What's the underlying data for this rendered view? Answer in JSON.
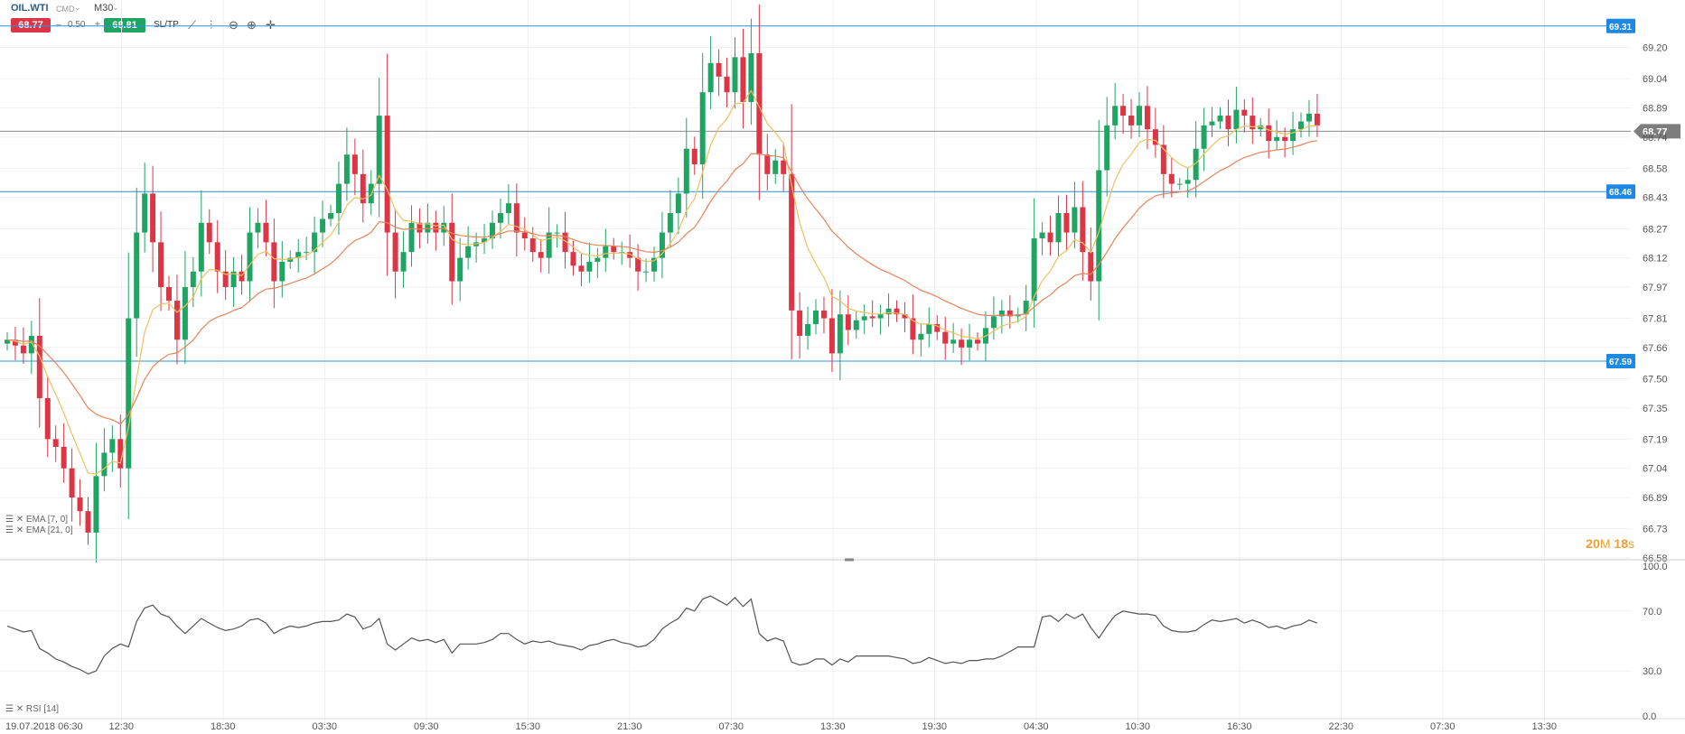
{
  "header": {
    "symbol": "OIL.WTI",
    "symbol_sub": "CMD",
    "timeframe": "M30",
    "sell_price": "68.77",
    "spread_minus": "–",
    "spread": "0.50",
    "spread_plus": "+",
    "buy_price": "68.81",
    "sltp_label": "SL/TP"
  },
  "indicators": {
    "ema_fast": "EMA [7, 0]",
    "ema_slow": "EMA [21, 0]",
    "rsi": "RSI [14]"
  },
  "timer": {
    "minutes": "20",
    "minutes_unit": "M",
    "seconds": "18",
    "seconds_unit": "s"
  },
  "chart_data": {
    "type": "candlestick",
    "ylim": [
      66.58,
      69.36
    ],
    "y_ticks": [
      "69.20",
      "69.04",
      "68.89",
      "68.74",
      "68.58",
      "68.43",
      "68.27",
      "68.12",
      "67.97",
      "67.81",
      "67.66",
      "67.50",
      "67.35",
      "67.19",
      "67.04",
      "66.89",
      "66.73",
      "66.58"
    ],
    "x_ticks": [
      "19.07.2018 06:30",
      "12:30",
      "18:30",
      "03:30",
      "09:30",
      "15:30",
      "21:30",
      "07:30",
      "13:30",
      "19:30",
      "04:30",
      "10:30",
      "16:30",
      "22:30",
      "07:30",
      "13:30"
    ],
    "horizontal_lines": [
      {
        "value": 69.31,
        "label": "69.31",
        "color": "#2f8fd8"
      },
      {
        "value": 68.46,
        "label": "68.46",
        "color": "#2f8fd8"
      },
      {
        "value": 67.59,
        "label": "67.59",
        "color": "#2f8fd8"
      }
    ],
    "current_price": {
      "value": 68.77,
      "label": "68.77",
      "color": "#8a8a8a"
    },
    "colors": {
      "up": "#1fa463",
      "down": "#dc3545",
      "ema_fast": "#f0c060",
      "ema_slow": "#e8845a",
      "rsi": "#555555"
    },
    "close": [
      67.7,
      67.67,
      67.63,
      67.72,
      67.4,
      67.19,
      67.15,
      67.04,
      66.89,
      66.82,
      66.71,
      67.0,
      67.12,
      67.19,
      67.04,
      67.81,
      68.25,
      68.45,
      68.2,
      67.97,
      67.9,
      67.7,
      67.97,
      68.05,
      68.3,
      68.2,
      68.05,
      67.97,
      68.05,
      68.0,
      68.25,
      68.3,
      68.2,
      68.0,
      68.1,
      68.12,
      68.15,
      68.15,
      68.25,
      68.32,
      68.35,
      68.5,
      68.65,
      68.55,
      68.4,
      68.5,
      68.85,
      68.25,
      68.05,
      68.15,
      68.3,
      68.25,
      68.3,
      68.25,
      68.3,
      68.0,
      68.12,
      68.18,
      68.2,
      68.22,
      68.3,
      68.35,
      68.4,
      68.25,
      68.22,
      68.15,
      68.12,
      68.25,
      68.25,
      68.15,
      68.08,
      68.05,
      68.1,
      68.12,
      68.18,
      68.15,
      68.15,
      68.12,
      68.05,
      68.05,
      68.12,
      68.25,
      68.35,
      68.45,
      68.68,
      68.6,
      68.97,
      69.12,
      69.05,
      68.97,
      69.15,
      68.92,
      69.17,
      68.65,
      68.55,
      68.62,
      68.55,
      67.85,
      67.72,
      67.78,
      67.85,
      67.81,
      67.63,
      67.83,
      67.75,
      67.8,
      67.82,
      67.81,
      67.83,
      67.86,
      67.83,
      67.81,
      67.7,
      67.73,
      67.78,
      67.74,
      67.68,
      67.7,
      67.66,
      67.7,
      67.68,
      67.76,
      67.82,
      67.85,
      67.82,
      67.83,
      67.9,
      68.22,
      68.25,
      68.2,
      68.35,
      68.25,
      68.38,
      68.15,
      68.0,
      68.57,
      68.8,
      68.9,
      68.85,
      68.8,
      68.9,
      68.78,
      68.7,
      68.55,
      68.5,
      68.5,
      68.52,
      68.68,
      68.8,
      68.82,
      68.85,
      68.78,
      68.88,
      68.85,
      68.78,
      68.8,
      68.72,
      68.74,
      68.72,
      68.78,
      68.82,
      68.86,
      68.8
    ]
  },
  "rsi_data": {
    "ylim": [
      0,
      100
    ],
    "y_ticks": [
      "100.0",
      "70.0",
      "30.0",
      "0.0"
    ],
    "values": [
      60,
      58,
      56,
      57,
      45,
      42,
      38,
      36,
      33,
      31,
      28,
      30,
      40,
      45,
      48,
      46,
      63,
      72,
      74,
      68,
      66,
      60,
      55,
      60,
      65,
      62,
      59,
      57,
      58,
      60,
      64,
      65,
      62,
      55,
      58,
      60,
      59,
      60,
      62,
      63,
      63,
      64,
      68,
      66,
      58,
      60,
      65,
      48,
      44,
      48,
      52,
      50,
      51,
      49,
      51,
      42,
      48,
      48,
      48,
      49,
      51,
      55,
      55,
      51,
      48,
      50,
      49,
      50,
      48,
      47,
      46,
      44,
      47,
      48,
      50,
      51,
      49,
      48,
      46,
      47,
      51,
      58,
      62,
      65,
      72,
      70,
      78,
      80,
      77,
      74,
      79,
      73,
      78,
      55,
      50,
      52,
      50,
      36,
      34,
      35,
      38,
      38,
      34,
      38,
      36,
      40,
      40,
      40,
      40,
      40,
      39,
      38,
      35,
      36,
      39,
      37,
      35,
      36,
      35,
      37,
      37,
      38,
      38,
      40,
      43,
      46,
      46,
      46,
      66,
      67,
      63,
      68,
      65,
      68,
      59,
      52,
      60,
      67,
      70,
      69,
      68,
      68,
      67,
      60,
      57,
      56,
      56,
      57,
      61,
      64,
      63,
      64,
      65,
      62,
      64,
      62,
      59,
      60,
      58,
      60,
      61,
      64,
      62
    ]
  }
}
